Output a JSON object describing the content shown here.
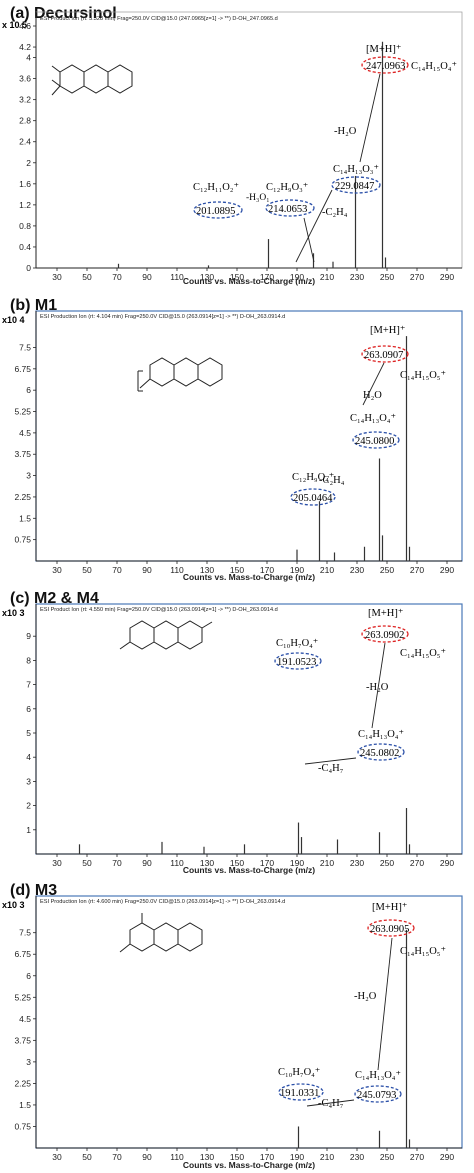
{
  "chart_data": [
    {
      "type": "bar",
      "title": "(a) Decursinol",
      "scale_label": "x 10 5",
      "header": "ESI Product Ion (rt: 5.328 min) Frag=250.0V CID@15.0 (247.0965[z=1] -> **) D-OH_247.0965.d",
      "xlabel": "Counts vs. Mass-to-Charge (m/z)",
      "xlim": [
        16,
        300
      ],
      "ylim": [
        0,
        4.6
      ],
      "xticks": [
        "30",
        "50",
        "70",
        "90",
        "110",
        "130",
        "150",
        "170",
        "190",
        "210",
        "230",
        "250",
        "270",
        "290"
      ],
      "yticks": [
        "0",
        "0.4",
        "0.8",
        "1.2",
        "1.6",
        "2",
        "2.4",
        "2.8",
        "3.2",
        "3.6",
        "4",
        "4.2",
        "4.6"
      ],
      "peaks": [
        {
          "x": 71,
          "y": 0.08
        },
        {
          "x": 131,
          "y": 0.05
        },
        {
          "x": 171,
          "y": 0.55
        },
        {
          "x": 201,
          "y": 0.28
        },
        {
          "x": 214,
          "y": 0.12
        },
        {
          "x": 229,
          "y": 1.75
        },
        {
          "x": 247,
          "y": 4.3
        },
        {
          "x": 249,
          "y": 0.2
        }
      ],
      "annotations": [
        {
          "text": "[M+H]⁺",
          "style": "plain"
        },
        {
          "text": "247.0963",
          "style": "red-oval"
        },
        {
          "text": "C₁₄H₁₅O₄⁺",
          "style": "plain"
        },
        {
          "text": "-H₂O",
          "style": "plain"
        },
        {
          "text": "C₁₄H₁₃O₃⁺",
          "style": "plain"
        },
        {
          "text": "229.0847",
          "style": "blue-oval"
        },
        {
          "text": "C₁₂H₁₁O₂⁺",
          "style": "plain"
        },
        {
          "text": "201.0895",
          "style": "blue-oval"
        },
        {
          "text": "C₁₂H₉O₃⁺",
          "style": "plain"
        },
        {
          "text": "214.0653",
          "style": "blue-oval"
        },
        {
          "text": "-H₃O₁",
          "style": "plain"
        },
        {
          "text": "-C₂H₄",
          "style": "plain"
        }
      ]
    },
    {
      "type": "bar",
      "title": "(b) M1",
      "scale_label": "x10 4",
      "header": "ESI Production Ion (rt: 4.104 min) Frag=250.0V CID@15.0 (263.0914[z=1] -> **) D-OH_263.0914.d",
      "xlabel": "Counts vs. Mass-to-Charge (m/z)",
      "xlim": [
        16,
        300
      ],
      "ylim": [
        0,
        8.5
      ],
      "xticks": [
        "30",
        "50",
        "70",
        "90",
        "110",
        "130",
        "150",
        "170",
        "190",
        "210",
        "230",
        "250",
        "270",
        "290"
      ],
      "yticks": [
        "0.75",
        "1.5",
        "2.25",
        "3",
        "3.75",
        "4.5",
        "5.25",
        "6",
        "6.75",
        "7.5"
      ],
      "peaks": [
        {
          "x": 190,
          "y": 0.4
        },
        {
          "x": 205,
          "y": 2.1
        },
        {
          "x": 215,
          "y": 0.3
        },
        {
          "x": 235,
          "y": 0.5
        },
        {
          "x": 245,
          "y": 3.6
        },
        {
          "x": 247,
          "y": 0.9
        },
        {
          "x": 263,
          "y": 7.9
        },
        {
          "x": 265,
          "y": 0.5
        }
      ],
      "annotations": [
        {
          "text": "[M+H]⁺",
          "style": "plain"
        },
        {
          "text": "263.0907",
          "style": "red-oval"
        },
        {
          "text": "C₁₄H₁₅O₅⁺",
          "style": "plain"
        },
        {
          "text": "H₂O",
          "style": "plain"
        },
        {
          "text": "C₁₄H₁₃O₄⁺",
          "style": "plain"
        },
        {
          "text": "245.0800",
          "style": "blue-oval"
        },
        {
          "text": "-C₂H₄",
          "style": "plain"
        },
        {
          "text": "C₁₂H₉O₄⁺",
          "style": "plain"
        },
        {
          "text": "205.0464",
          "style": "blue-oval"
        }
      ]
    },
    {
      "type": "bar",
      "title": "(c) M2 & M4",
      "scale_label": "x10 3",
      "header": "ESI Product Ion (rt: 4.550 min) Frag=250.0V CID@15.0 (263.0914[z=1] -> **) D-OH_263.0914.d",
      "xlabel": "Counts vs. Mass-to-Charge (m/z)",
      "xlim": [
        16,
        300
      ],
      "ylim": [
        0,
        10
      ],
      "xticks": [
        "30",
        "50",
        "70",
        "90",
        "110",
        "130",
        "150",
        "170",
        "190",
        "210",
        "230",
        "250",
        "270",
        "290"
      ],
      "yticks": [
        "1",
        "2",
        "3",
        "4",
        "5",
        "6",
        "7",
        "8",
        "9"
      ],
      "peaks": [
        {
          "x": 45,
          "y": 0.4
        },
        {
          "x": 100,
          "y": 0.5
        },
        {
          "x": 128,
          "y": 0.3
        },
        {
          "x": 155,
          "y": 0.4
        },
        {
          "x": 191,
          "y": 1.3
        },
        {
          "x": 193,
          "y": 0.7
        },
        {
          "x": 217,
          "y": 0.6
        },
        {
          "x": 245,
          "y": 0.9
        },
        {
          "x": 263,
          "y": 1.9
        },
        {
          "x": 265,
          "y": 0.4
        }
      ],
      "annotations": [
        {
          "text": "[M+H]⁺",
          "style": "plain"
        },
        {
          "text": "263.0902",
          "style": "red-oval"
        },
        {
          "text": "C₁₄H₁₅O₅⁺",
          "style": "plain"
        },
        {
          "text": "-H₂O",
          "style": "plain"
        },
        {
          "text": "C₁₀H₇O₄⁺",
          "style": "plain"
        },
        {
          "text": "191.0523",
          "style": "blue-oval"
        },
        {
          "text": "C₁₄H₁₃O₄⁺",
          "style": "plain"
        },
        {
          "text": "245.0802",
          "style": "blue-oval"
        },
        {
          "text": "-C₄H₇",
          "style": "plain"
        }
      ]
    },
    {
      "type": "bar",
      "title": "(d) M3",
      "scale_label": "x10 3",
      "header": "ESI Production Ion (rt: 4.600 min) Frag=250.0V CID@15.0 (263.0914[z=1] -> **) D-OH_263.0914.d",
      "xlabel": "Counts vs. Mass-to-Charge (m/z)",
      "xlim": [
        16,
        300
      ],
      "ylim": [
        0,
        8.5
      ],
      "xticks": [
        "30",
        "50",
        "70",
        "90",
        "110",
        "130",
        "150",
        "170",
        "190",
        "210",
        "230",
        "250",
        "270",
        "290"
      ],
      "yticks": [
        "0.75",
        "1.5",
        "2.25",
        "3",
        "3.75",
        "4.5",
        "5.25",
        "6",
        "6.75",
        "7.5"
      ],
      "peaks": [
        {
          "x": 191,
          "y": 0.75
        },
        {
          "x": 245,
          "y": 0.6
        },
        {
          "x": 263,
          "y": 7.6
        },
        {
          "x": 265,
          "y": 0.3
        }
      ],
      "annotations": [
        {
          "text": "[M+H]⁺",
          "style": "plain"
        },
        {
          "text": "263.0905",
          "style": "red-oval"
        },
        {
          "text": "C₁₄H₁₅O₅⁺",
          "style": "plain"
        },
        {
          "text": "-H₂O",
          "style": "plain"
        },
        {
          "text": "C₁₀H₇O₄⁺",
          "style": "plain"
        },
        {
          "text": "191.0331",
          "style": "blue-oval"
        },
        {
          "text": "C₁₄H₁₃O₄⁺",
          "style": "plain"
        },
        {
          "text": "245.0793",
          "style": "blue-oval"
        },
        {
          "text": "-C₄H₇",
          "style": "plain"
        }
      ]
    }
  ]
}
